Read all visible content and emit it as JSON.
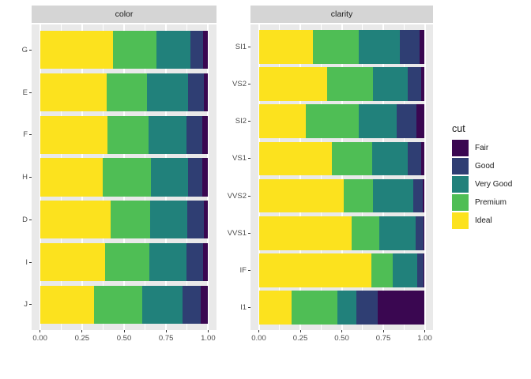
{
  "figure": {
    "background": "#FFFFFF",
    "panel_background": "#E9E9E9",
    "strip_background": "#D5D5D5",
    "strip_text_color": "#1A1A1A",
    "grid_color": "#FFFFFF",
    "tick_color": "#333333",
    "axis_text_color": "#4D4D4D"
  },
  "facets": [
    {
      "strip": "color"
    },
    {
      "strip": "clarity"
    }
  ],
  "x_axis": {
    "tick_labels": [
      "0.00",
      "0.25",
      "0.50",
      "0.75",
      "1.00"
    ],
    "tick_values": [
      0,
      0.25,
      0.5,
      0.75,
      1
    ],
    "minor_values": [
      0.125,
      0.375,
      0.625,
      0.875
    ]
  },
  "legend": {
    "title": "cut",
    "items": [
      {
        "label": "Fair",
        "color": "#3A0751"
      },
      {
        "label": "Good",
        "color": "#2F3E73"
      },
      {
        "label": "Very Good",
        "color": "#21817B"
      },
      {
        "label": "Premium",
        "color": "#4FBE55"
      },
      {
        "label": "Ideal",
        "color": "#FCE21E"
      }
    ]
  },
  "chart_data": [
    {
      "type": "bar",
      "orientation": "horizontal",
      "stacked": true,
      "normalized": true,
      "title": "color",
      "xlabel": "",
      "ylabel": "",
      "xlim": [
        0,
        1
      ],
      "categories": [
        "G",
        "E",
        "F",
        "H",
        "D",
        "I",
        "J"
      ],
      "stack_order_left_to_right": [
        "Ideal",
        "Premium",
        "Very Good",
        "Good",
        "Fair"
      ],
      "series": [
        {
          "name": "Ideal",
          "color": "#FCE21E",
          "values": [
            0.433,
            0.398,
            0.401,
            0.375,
            0.418,
            0.386,
            0.319
          ]
        },
        {
          "name": "Premium",
          "color": "#4FBE55",
          "values": [
            0.259,
            0.239,
            0.244,
            0.284,
            0.237,
            0.263,
            0.288
          ]
        },
        {
          "name": "Very Good",
          "color": "#21817B",
          "values": [
            0.204,
            0.245,
            0.227,
            0.22,
            0.223,
            0.222,
            0.241
          ]
        },
        {
          "name": "Good",
          "color": "#2F3E73",
          "values": [
            0.077,
            0.095,
            0.095,
            0.085,
            0.098,
            0.096,
            0.109
          ]
        },
        {
          "name": "Fair",
          "color": "#3A0751",
          "values": [
            0.028,
            0.023,
            0.033,
            0.036,
            0.024,
            0.032,
            0.042
          ]
        }
      ]
    },
    {
      "type": "bar",
      "orientation": "horizontal",
      "stacked": true,
      "normalized": true,
      "title": "clarity",
      "xlabel": "",
      "ylabel": "",
      "xlim": [
        0,
        1
      ],
      "categories": [
        "SI1",
        "VS2",
        "SI2",
        "VS1",
        "VVS2",
        "VVS1",
        "IF",
        "I1"
      ],
      "stack_order_left_to_right": [
        "Ideal",
        "Premium",
        "Very Good",
        "Good",
        "Fair"
      ],
      "series": [
        {
          "name": "Ideal",
          "color": "#FCE21E",
          "values": [
            0.328,
            0.414,
            0.283,
            0.439,
            0.514,
            0.56,
            0.677,
            0.197
          ]
        },
        {
          "name": "Premium",
          "color": "#4FBE55",
          "values": [
            0.274,
            0.274,
            0.321,
            0.243,
            0.172,
            0.169,
            0.128,
            0.277
          ]
        },
        {
          "name": "Very Good",
          "color": "#21817B",
          "values": [
            0.248,
            0.211,
            0.228,
            0.217,
            0.244,
            0.216,
            0.15,
            0.113
          ]
        },
        {
          "name": "Good",
          "color": "#2F3E73",
          "values": [
            0.119,
            0.08,
            0.118,
            0.079,
            0.056,
            0.051,
            0.04,
            0.13
          ]
        },
        {
          "name": "Fair",
          "color": "#3A0751",
          "values": [
            0.031,
            0.021,
            0.051,
            0.021,
            0.014,
            0.005,
            0.005,
            0.283
          ]
        }
      ]
    }
  ]
}
